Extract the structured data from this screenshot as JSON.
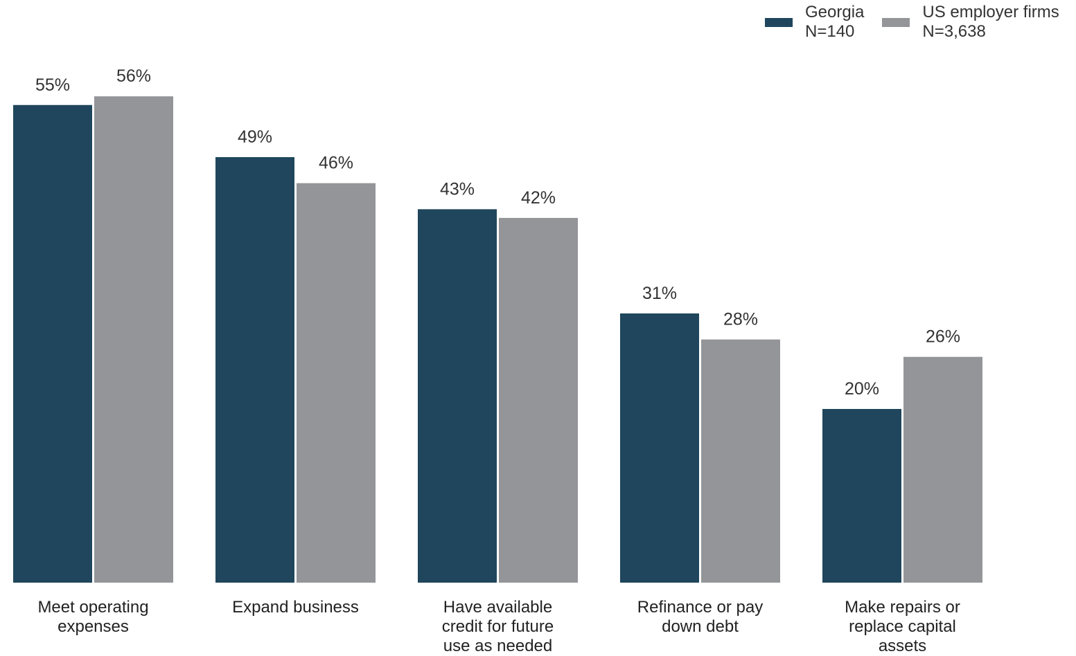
{
  "chart_data": {
    "type": "bar",
    "categories": [
      [
        "Meet operating",
        "expenses"
      ],
      [
        "Expand business"
      ],
      [
        "Have available",
        "credit for future",
        "use as needed"
      ],
      [
        "Refinance or pay",
        "down debt"
      ],
      [
        "Make repairs or",
        "replace capital",
        "assets"
      ]
    ],
    "series": [
      {
        "name": "Georgia",
        "n_label": "N=140",
        "color": "#1f465c",
        "values": [
          55,
          49,
          43,
          31,
          20
        ]
      },
      {
        "name": "US employer firms",
        "n_label": "N=3,638",
        "color": "#939598",
        "values": [
          56,
          46,
          42,
          28,
          26
        ]
      }
    ],
    "value_suffix": "%",
    "ylim": [
      0,
      100
    ],
    "legend_position": "top-right",
    "grid": false,
    "title": "",
    "xlabel": "",
    "ylabel": ""
  }
}
